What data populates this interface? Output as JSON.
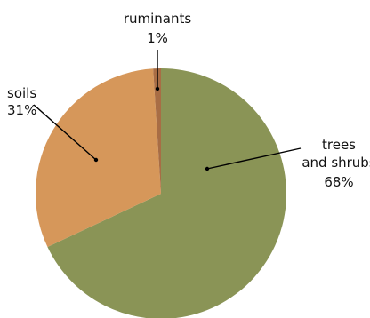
{
  "chart_data": {
    "type": "pie",
    "slices": [
      {
        "label_lines": [
          "trees",
          "and shrubs"
        ],
        "pct_label": "68%",
        "value": 68,
        "color": "#8a9456"
      },
      {
        "label_lines": [
          "soils"
        ],
        "pct_label": "31%",
        "value": 31,
        "color": "#d6975a"
      },
      {
        "label_lines": [
          "ruminants"
        ],
        "pct_label": "1%",
        "value": 1,
        "color": "#a86d45"
      }
    ]
  }
}
